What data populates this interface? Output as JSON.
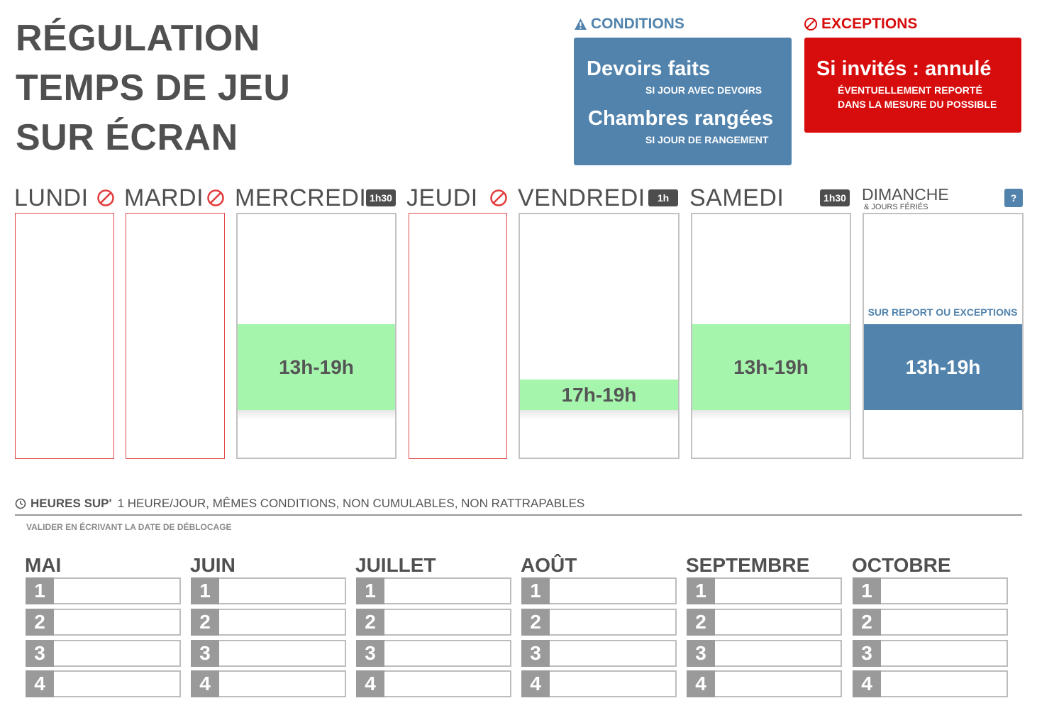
{
  "title": {
    "line1": "RÉGULATION",
    "line2": "TEMPS DE JEU",
    "line3": "SUR ÉCRAN"
  },
  "conditions": {
    "heading": "CONDITIONS",
    "icon": "warning-icon",
    "color": "#5183ad",
    "items": [
      {
        "label": "Devoirs faits",
        "note": "SI JOUR AVEC DEVOIRS"
      },
      {
        "label": "Chambres rangées",
        "note": "SI JOUR DE RANGEMENT"
      }
    ]
  },
  "exceptions": {
    "heading": "EXCEPTIONS",
    "icon": "ban-icon",
    "color": "#d70c0c",
    "label": "Si invités : annulé",
    "note_line1": "ÉVENTUELLEMENT REPORTÉ",
    "note_line2": "DANS LA MESURE DU POSSIBLE"
  },
  "days": {
    "monday": {
      "label": "LUNDI",
      "status": "banned"
    },
    "tuesday": {
      "label": "MARDI",
      "status": "banned"
    },
    "wednesday": {
      "label": "MERCREDI",
      "duration": "1h30",
      "slot": "13h-19h"
    },
    "thursday": {
      "label": "JEUDI",
      "status": "banned"
    },
    "friday": {
      "label": "VENDREDI",
      "duration": "1h",
      "slot": "17h-19h"
    },
    "saturday": {
      "label": "SAMEDI",
      "duration": "1h30",
      "slot": "13h-19h"
    },
    "sunday": {
      "label": "DIMANCHE",
      "sublabel": "& JOURS FÉRIÉS",
      "badge": "?",
      "note": "SUR REPORT OU EXCEPTIONS",
      "slot": "13h-19h"
    }
  },
  "overtime": {
    "icon": "clock-icon",
    "label": "HEURES SUP'",
    "text": "1 HEURE/JOUR, MÊMES CONDITIONS, NON CUMULABLES, NON RATTRAPABLES",
    "note": "VALIDER EN ÉCRIVANT LA DATE  DE DÉBLOCAGE"
  },
  "months": {
    "names": [
      "MAI",
      "JUIN",
      "JUILLET",
      "AOÛT",
      "SEPTEMBRE",
      "OCTOBRE"
    ],
    "rows": [
      "1",
      "2",
      "3",
      "4"
    ]
  }
}
